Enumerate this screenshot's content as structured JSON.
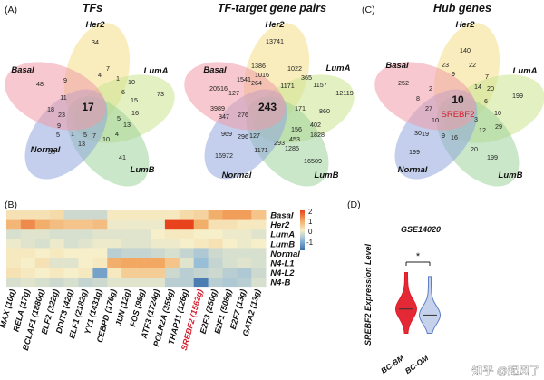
{
  "panels": {
    "A": {
      "label": "(A)",
      "title": "TFs",
      "sets": [
        "Her2",
        "LumA",
        "LumB",
        "Normal",
        "Basal"
      ],
      "center": "17",
      "values": {
        "Her2": "34",
        "LumA": "73",
        "LumB": "41",
        "Normal": "55",
        "Basal": "48",
        "i1": "7",
        "i2": "4",
        "i3": "1",
        "i4": "10",
        "i5": "6",
        "i6": "15",
        "i7": "16",
        "i8": "5",
        "i9": "13",
        "i10": "4",
        "i11": "10",
        "i12": "7",
        "i13": "5",
        "i14": "1",
        "i15": "13",
        "i16": "5",
        "i17": "9",
        "i18": "23",
        "i19": "18",
        "i20": "11",
        "i21": "9"
      }
    },
    "B": {
      "label": "",
      "title": "TF-target gene pairs",
      "sets": [
        "Her2",
        "LumA",
        "LumB",
        "Normal",
        "Basal"
      ],
      "center": "243",
      "values": {
        "Her2": "13741",
        "LumA": "12119",
        "LumB": "16509",
        "Normal": "16972",
        "Basal": "20516",
        "i1": "1386",
        "i2": "1022",
        "i3": "1541",
        "i4": "1016",
        "i5": "264",
        "i6": "365",
        "i7": "1157",
        "i8": "1171",
        "i9": "860",
        "i10": "402",
        "i11": "1828",
        "i12": "156",
        "i13": "453",
        "i14": "1285",
        "i15": "293",
        "i16": "1171",
        "i17": "969",
        "i18": "296",
        "i19": "127",
        "i20": "3989",
        "i21": "347",
        "i22": "276",
        "i23": "127",
        "i24": "171"
      }
    },
    "C": {
      "label": "(C)",
      "title": "Hub genes",
      "sets": [
        "Her2",
        "LumA",
        "LumB",
        "Normal",
        "Basal"
      ],
      "center": "10",
      "highlight": "SREBF2",
      "values": {
        "Her2": "140",
        "LumA": "199",
        "LumB": "199",
        "Normal": "199",
        "Basal": "252",
        "i1": "23",
        "i2": "22",
        "i3": "9",
        "i4": "7",
        "i5": "14",
        "i6": "20",
        "i7": "6",
        "i8": "10",
        "i9": "29",
        "i10": "12",
        "i11": "3",
        "i12": "20",
        "i13": "16",
        "i14": "9",
        "i15": "19",
        "i16": "10",
        "i17": "30",
        "i18": "27",
        "i19": "8",
        "i20": "2"
      }
    }
  },
  "heatmap": {
    "label": "(B)",
    "rows": [
      "Basal",
      "Her2",
      "LumA",
      "LumB",
      "Normal",
      "N4-L1",
      "N4-L2",
      "N4-B"
    ],
    "cols": [
      "MAX (10g)",
      "RELA (17g)",
      "BCLAF1 (1880g)",
      "ELF2 (322g)",
      "DDIT3 (42g)",
      "ELF1 (2182g)",
      "YY1 (1431g)",
      "CEBPD (176g)",
      "JUN (12g)",
      "FOS (98g)",
      "ATF3 (1724g)",
      "POLR2A (359g)",
      "THAP11 (126g)",
      "SREBF2 (1562g)",
      "E2F3 (250g)",
      "E2F1 (508g)",
      "E2F7 (13g)",
      "GATA2 (13g)"
    ],
    "highlight_col": "SREBF2 (1562g)",
    "values": [
      [
        0.2,
        0.2,
        0.2,
        0.3,
        -0.4,
        -0.4,
        -0.4,
        0.1,
        0.1,
        0.1,
        0.1,
        0.1,
        0.3,
        0.4,
        0.9,
        1.1,
        1.1,
        0.6
      ],
      [
        0.8,
        1.3,
        0.9,
        0.7,
        0.6,
        0.6,
        0.7,
        -0.1,
        -0.1,
        -0.1,
        -0.1,
        2.0,
        2.0,
        0.9,
        0.2,
        0.2,
        0.1,
        0.1
      ],
      [
        -0.3,
        -0.2,
        -0.2,
        -0.3,
        -0.3,
        -0.3,
        -0.2,
        -0.2,
        -0.2,
        -0.2,
        0.0,
        0.1,
        0.1,
        0.0,
        0.0,
        -0.1,
        -0.1,
        -0.2
      ],
      [
        -0.1,
        -0.2,
        -0.3,
        -0.1,
        -0.3,
        -0.2,
        -0.1,
        -0.1,
        -0.2,
        -0.2,
        -0.1,
        -0.1,
        0.0,
        0.1,
        0.2,
        0.0,
        -0.1,
        0.0
      ],
      [
        0.1,
        0.1,
        0.0,
        0.1,
        0.0,
        0.0,
        0.0,
        -0.6,
        -0.5,
        -0.5,
        -0.4,
        -0.3,
        -0.5,
        -0.7,
        -0.4,
        -0.3,
        -0.3,
        -0.3
      ],
      [
        0.1,
        0.0,
        0.2,
        -0.2,
        -0.2,
        0.0,
        0.1,
        0.9,
        1.0,
        1.0,
        1.0,
        0.6,
        -0.2,
        -0.9,
        -0.5,
        -0.3,
        -0.2,
        -0.3
      ],
      [
        0.2,
        0.1,
        0.0,
        0.1,
        0.0,
        0.1,
        -1.3,
        0.1,
        0.5,
        0.5,
        0.5,
        -0.4,
        -0.6,
        -0.5,
        -0.4,
        -0.6,
        -0.7,
        -0.4
      ],
      [
        -0.3,
        -0.2,
        -0.3,
        -0.4,
        -0.3,
        -0.5,
        -0.4,
        -0.2,
        -0.2,
        -0.2,
        -0.2,
        -0.6,
        -0.6,
        -1.8,
        -0.6,
        -0.7,
        -0.6,
        -0.3
      ]
    ],
    "colorbar": {
      "ticks": [
        "2",
        "1",
        "0",
        "-1"
      ],
      "min": -2,
      "max": 2
    }
  },
  "chart_data": {
    "type": "violin",
    "title": "GSE14020",
    "ylabel": "SREBF2 Expression Level",
    "categories": [
      "BC-BM",
      "BC-OM"
    ],
    "colors": [
      "#e11d2a",
      "#5b7ec8"
    ],
    "medians": [
      8.6,
      8.45
    ],
    "ranges": [
      [
        8.0,
        9.5
      ],
      [
        8.0,
        9.4
      ]
    ],
    "significance": "*",
    "panel_label": "(D)"
  },
  "watermark": "知乎 @起风了",
  "colors": {
    "her2": "#f4df86",
    "luma": "#cbe48f",
    "lumb": "#9fd49d",
    "normal": "#91a8dc",
    "basal": "#f09aa8",
    "core": "#6f8a3c",
    "highlight": "#d41c2c"
  }
}
